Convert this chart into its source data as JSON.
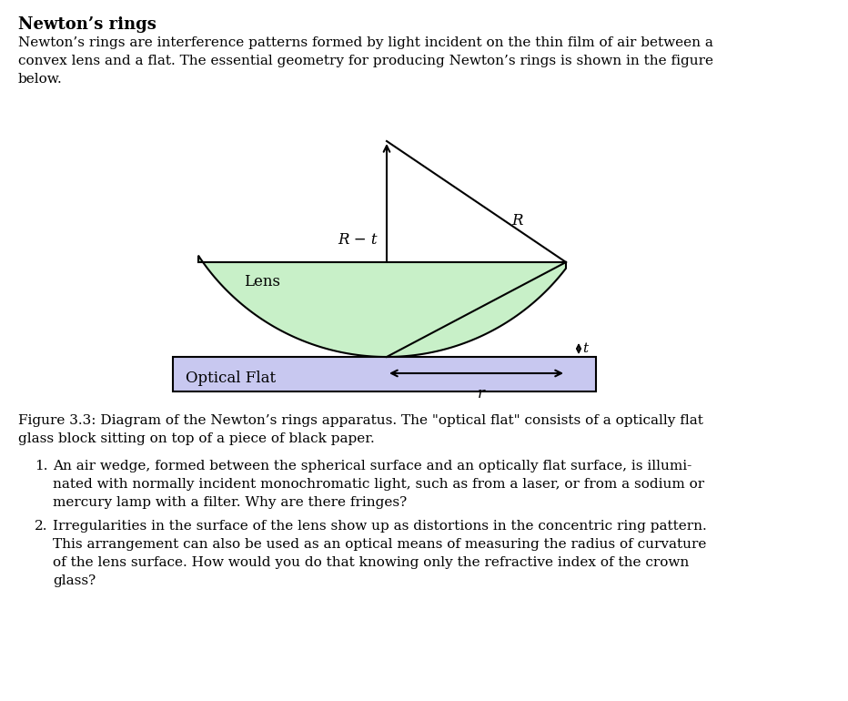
{
  "title": "Newton’s rings",
  "intro_text": "Newton’s rings are interference patterns formed by light incident on the thin film of air between a\nconvex lens and a flat. The essential geometry for producing Newton’s rings is shown in the figure\nbelow.",
  "figure_caption": "Figure 3.3: Diagram of the Newton’s rings apparatus. The \"optical flat\" consists of a optically flat\nglass block sitting on top of a piece of black paper.",
  "item1": "An air wedge, formed between the spherical surface and an optically flat surface, is illumi-\nnated with normally incident monochromatic light, such as from a laser, or from a sodium or\nmercury lamp with a filter. Why are there fringes?",
  "item2": "Irregularities in the surface of the lens show up as distortions in the concentric ring pattern.\nThis arrangement can also be used as an optical means of measuring the radius of curvature\nof the lens surface. How would you do that knowing only the refractive index of the crown\nglass?",
  "lens_color": "#c8f0c8",
  "flat_color": "#c8c8f0",
  "lens_label": "Lens",
  "flat_label": "Optical Flat",
  "label_R_minus_t": "R − t",
  "label_R": "R",
  "label_t": "t",
  "label_r": "r",
  "bg_color": "#ffffff",
  "text_color": "#000000"
}
